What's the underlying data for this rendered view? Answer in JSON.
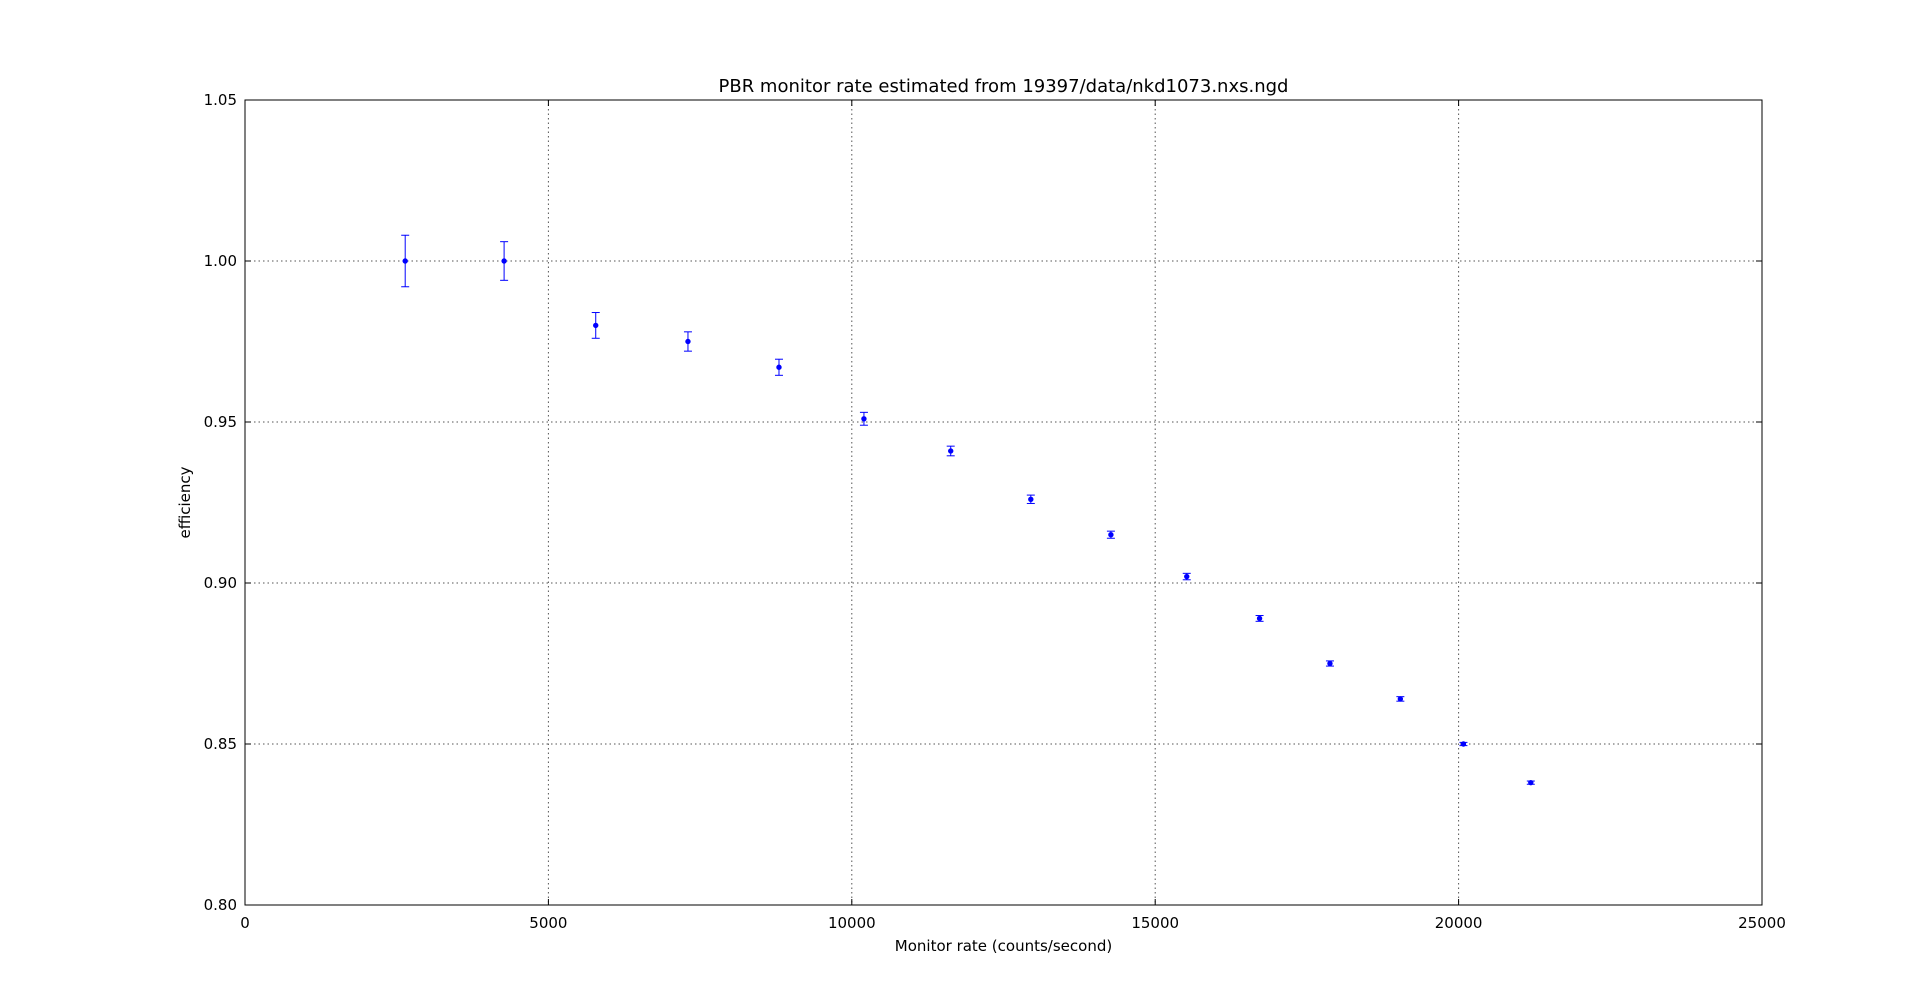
{
  "chart_data": {
    "type": "scatter",
    "title": "PBR monitor rate estimated from 19397/data/nkd1073.nxs.ngd",
    "xlabel": "Monitor rate (counts/second)",
    "ylabel": "efficiency",
    "xlim": [
      0,
      25000
    ],
    "ylim": [
      0.8,
      1.05
    ],
    "x_ticks": [
      "0",
      "5000",
      "10000",
      "15000",
      "20000",
      "25000"
    ],
    "y_ticks": [
      "0.80",
      "0.85",
      "0.90",
      "0.95",
      "1.00",
      "1.05"
    ],
    "grid": true,
    "color": "#0000ff",
    "series": [
      {
        "x": [
          2640,
          4270,
          5780,
          7300,
          8800,
          10200,
          11630,
          12950,
          14270,
          15520,
          16720,
          17880,
          19040,
          20080,
          21190
        ],
        "y": [
          1.0,
          1.0,
          0.98,
          0.975,
          0.967,
          0.951,
          0.941,
          0.926,
          0.915,
          0.902,
          0.889,
          0.875,
          0.864,
          0.85,
          0.838
        ],
        "yerr": [
          0.008,
          0.006,
          0.004,
          0.003,
          0.0025,
          0.002,
          0.0015,
          0.0013,
          0.0011,
          0.001,
          0.0009,
          0.0008,
          0.0007,
          0.0005,
          0.0005
        ]
      }
    ]
  }
}
